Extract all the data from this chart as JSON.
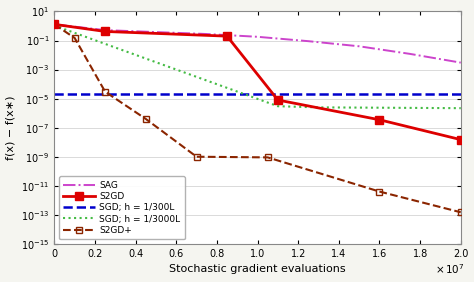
{
  "xlabel": "Stochastic gradient evaluations",
  "ylabel": "f(x) − f(x∗)",
  "xlim": [
    0,
    20000000.0
  ],
  "ylim": [
    1e-15,
    10
  ],
  "SAG": {
    "x": [
      0,
      2500000.0,
      5000000.0,
      7500000.0,
      10000000.0,
      12500000.0,
      15000000.0,
      17500000.0,
      20000000.0
    ],
    "y": [
      1.3,
      0.52,
      0.38,
      0.28,
      0.18,
      0.09,
      0.04,
      0.012,
      0.003
    ],
    "color": "#cc44cc",
    "linestyle": "-.",
    "linewidth": 1.4,
    "label": "SAG"
  },
  "S2GD": {
    "x": [
      0,
      2500000.0,
      8500000.0,
      11000000.0,
      16000000.0,
      20000000.0
    ],
    "y": [
      1.3,
      0.42,
      0.2,
      8e-06,
      3.5e-07,
      1.5e-08
    ],
    "color": "#dd0000",
    "linestyle": "-",
    "linewidth": 2.0,
    "marker": "s",
    "markersize": 6,
    "label": "S2GD"
  },
  "SGD_300": {
    "x": [
      0,
      20000000.0
    ],
    "y": [
      2e-05,
      2e-05
    ],
    "color": "#0000cc",
    "linestyle": "--",
    "linewidth": 1.8,
    "label": "SGD; h = 1/300L"
  },
  "SGD_3000": {
    "x": [
      0,
      500000.0,
      11000000.0,
      13000000.0,
      20000000.0
    ],
    "y": [
      1.3,
      0.6,
      3e-06,
      2.5e-06,
      2.2e-06
    ],
    "color": "#44bb44",
    "linestyle": ":",
    "linewidth": 1.5,
    "label": "SGD; h = 1/3000L"
  },
  "S2GDplus": {
    "x": [
      0,
      1000000.0,
      2500000.0,
      4500000.0,
      7000000.0,
      10500000.0,
      16000000.0,
      20000000.0
    ],
    "y": [
      1.3,
      0.15,
      3e-05,
      4e-07,
      1e-09,
      9e-10,
      4e-12,
      1.5e-13
    ],
    "color": "#8B2500",
    "linestyle": "--",
    "linewidth": 1.5,
    "marker": "s",
    "markersize": 5,
    "markerfacecolor": "none",
    "label": "S2GD+"
  },
  "background_color": "#f5f5f0",
  "grid_color": "#cccccc"
}
